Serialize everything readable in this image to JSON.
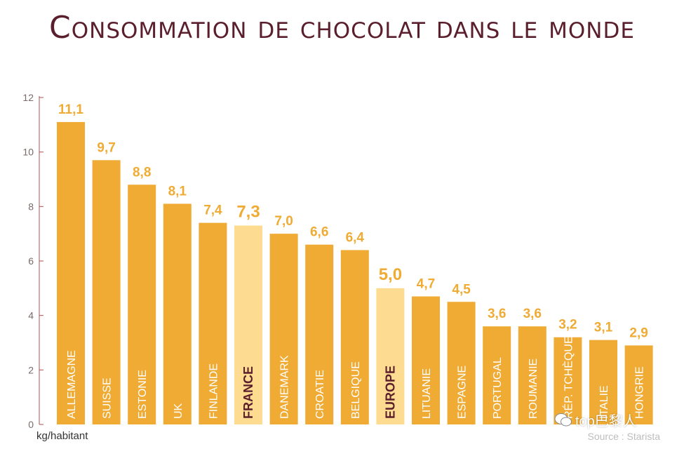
{
  "chart_data": {
    "type": "bar",
    "title": "Consommation de chocolat dans le monde",
    "ylabel": "kg/habitant",
    "ylim": [
      0,
      12
    ],
    "yticks": [
      0,
      2,
      4,
      6,
      8,
      10,
      12
    ],
    "categories": [
      "ALLEMAGNE",
      "SUISSE",
      "ESTONIE",
      "UK",
      "FINLANDE",
      "FRANCE",
      "DANEMARK",
      "CROATIE",
      "BELGIQUE",
      "EUROPE",
      "LITUANIE",
      "ESPAGNE",
      "PORTUGAL",
      "ROUMANIE",
      "RÉP. TCHÈQUE",
      "ITALIE",
      "HONGRIE"
    ],
    "values": [
      11.1,
      9.7,
      8.8,
      8.1,
      7.4,
      7.3,
      7.0,
      6.6,
      6.4,
      5.0,
      4.7,
      4.5,
      3.6,
      3.6,
      3.2,
      3.1,
      2.9
    ],
    "value_labels": [
      "11,1",
      "9,7",
      "8,8",
      "8,1",
      "7,4",
      "7,3",
      "7,0",
      "6,6",
      "6,4",
      "5,0",
      "4,7",
      "4,5",
      "3,6",
      "3,6",
      "3,2",
      "3,1",
      "2,9"
    ],
    "highlight": [
      "FRANCE",
      "EUROPE"
    ],
    "colors": {
      "bar": "#efab33",
      "highlight_bar": "#fddb91",
      "highlight_text": "#5a1e2c",
      "axis": "#b05050",
      "value": "#efab33"
    },
    "source": "Source : Starista"
  },
  "watermark": {
    "icon": "wechat-icon",
    "text": "top巴黎人"
  }
}
